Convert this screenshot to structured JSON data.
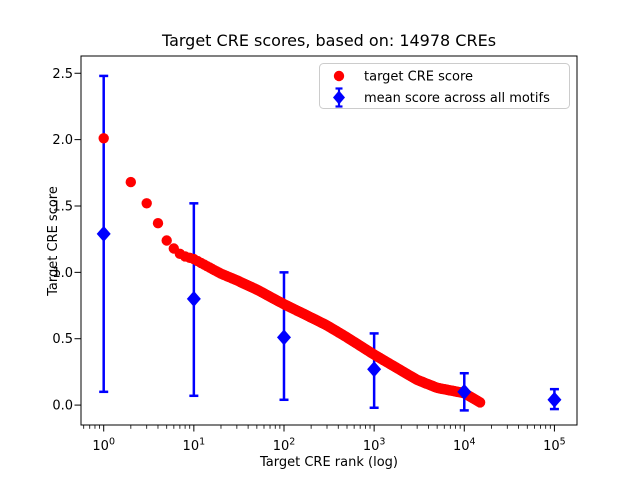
{
  "figure": {
    "title": "Target CRE scores, based on: 14978 CREs"
  },
  "chart_data": {
    "type": "scatter",
    "title": "Target CRE scores, based on: 14978 CREs",
    "xlabel": "Target CRE rank (log)",
    "ylabel": "Target CRE score",
    "x_scale": "log",
    "y_scale": "linear",
    "grid": false,
    "n_cres": 14978,
    "xlim": [
      0.56,
      178000
    ],
    "ylim": [
      -0.15,
      2.63
    ],
    "x_tick_values": [
      1,
      10,
      100,
      1000,
      10000,
      100000
    ],
    "x_tick_labels": [
      {
        "base": "10",
        "exp": "0"
      },
      {
        "base": "10",
        "exp": "1"
      },
      {
        "base": "10",
        "exp": "2"
      },
      {
        "base": "10",
        "exp": "3"
      },
      {
        "base": "10",
        "exp": "4"
      },
      {
        "base": "10",
        "exp": "5"
      }
    ],
    "y_tick_values": [
      0.0,
      0.5,
      1.0,
      1.5,
      2.0,
      2.5
    ],
    "y_tick_labels": [
      "0.0",
      "0.5",
      "1.0",
      "1.5",
      "2.0",
      "2.5"
    ],
    "legend": {
      "position": "upper right",
      "entries": [
        "target CRE score",
        "mean score across all motifs"
      ]
    },
    "colors": {
      "target_series": "#ff0000",
      "mean_series": "#0000ff",
      "legend_border": "#cccccc",
      "axes": "#000000"
    },
    "series": [
      {
        "name": "target CRE score",
        "type": "dense-scatter",
        "marker": "circle",
        "color": "#ff0000",
        "n_points": 14978,
        "anchors": {
          "rank": [
            1,
            2,
            3,
            4,
            5,
            6,
            7,
            8,
            9,
            10,
            20,
            30,
            50,
            100,
            200,
            300,
            500,
            1000,
            2000,
            3000,
            5000,
            10000,
            14978
          ],
          "score": [
            2.01,
            1.68,
            1.52,
            1.37,
            1.24,
            1.18,
            1.14,
            1.12,
            1.11,
            1.1,
            0.99,
            0.94,
            0.87,
            0.76,
            0.66,
            0.6,
            0.51,
            0.38,
            0.26,
            0.19,
            0.13,
            0.09,
            0.02
          ]
        }
      },
      {
        "name": "mean score across all motifs",
        "type": "errorbar",
        "marker": "diamond",
        "color": "#0000ff",
        "points": [
          {
            "x": 1,
            "mean": 1.29,
            "lo": 0.1,
            "hi": 2.48
          },
          {
            "x": 10,
            "mean": 0.8,
            "lo": 0.07,
            "hi": 1.52
          },
          {
            "x": 100,
            "mean": 0.51,
            "lo": 0.04,
            "hi": 1.0
          },
          {
            "x": 1000,
            "mean": 0.27,
            "lo": -0.02,
            "hi": 0.54
          },
          {
            "x": 10000,
            "mean": 0.1,
            "lo": -0.04,
            "hi": 0.24
          },
          {
            "x": 100000,
            "mean": 0.04,
            "lo": -0.03,
            "hi": 0.12
          }
        ]
      }
    ]
  }
}
